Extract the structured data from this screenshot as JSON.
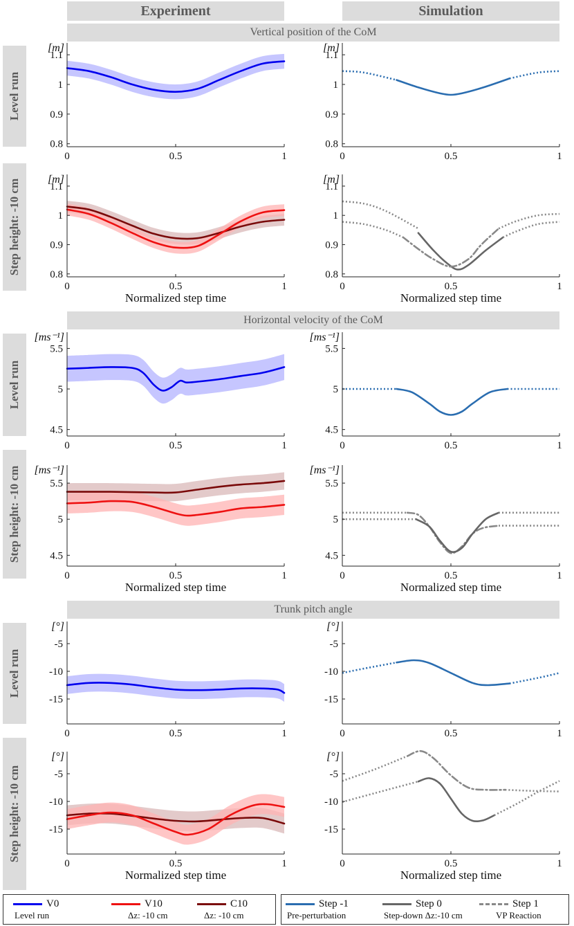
{
  "headers": {
    "experiment": "Experiment",
    "simulation": "Simulation"
  },
  "sections": [
    "Vertical position of the CoM",
    "Horizontal velocity of the CoM",
    "Trunk pitch angle"
  ],
  "row_labels": {
    "level": "Level  run",
    "step": "Step height: -10 cm"
  },
  "colors": {
    "V0": "#0000ee",
    "V10": "#ee1111",
    "C10": "#7a0a0a",
    "V0_band": "#b3b3ff",
    "V10_band": "#ffb3b3",
    "C10_band": "#d9b8b8",
    "sim_blue": "#2a6db0",
    "sim_gray": "#666666",
    "sim_lightgray": "#888888"
  },
  "legend": {
    "left": [
      {
        "name": "V0",
        "sub": "Level run"
      },
      {
        "name": "V10",
        "sub": "Δz: -10 cm"
      },
      {
        "name": "C10",
        "sub": "Δz: -10 cm"
      }
    ],
    "right": [
      {
        "name": "Step -1",
        "sub": "Pre-perturbation"
      },
      {
        "name": "Step 0",
        "sub": "Step-down Δz:-10 cm"
      },
      {
        "name": "Step 1",
        "sub": "VP Reaction"
      }
    ]
  },
  "chart_data": [
    {
      "id": "exp-com-level",
      "type": "line",
      "unit": "[m]",
      "xlabel": "",
      "xlim": [
        0,
        1
      ],
      "ylim": [
        0.79,
        1.14
      ],
      "yticks": [
        0.8,
        0.9,
        1,
        1.1
      ],
      "xticks": [
        0,
        0.5,
        1
      ],
      "series": [
        {
          "name": "V0",
          "color": "V0",
          "style": "solid",
          "x": [
            0,
            0.1,
            0.2,
            0.3,
            0.4,
            0.5,
            0.6,
            0.7,
            0.8,
            0.9,
            1.0
          ],
          "y": [
            1.055,
            1.045,
            1.025,
            1.0,
            0.982,
            0.975,
            0.985,
            1.015,
            1.045,
            1.07,
            1.078
          ],
          "band": 0.025
        }
      ]
    },
    {
      "id": "sim-com-level",
      "type": "line",
      "unit": "[m]",
      "xlabel": "",
      "xlim": [
        0,
        1
      ],
      "ylim": [
        0.79,
        1.14
      ],
      "yticks": [
        0.8,
        0.9,
        1,
        1.1
      ],
      "xticks": [
        0,
        0.5,
        1
      ],
      "series": [
        {
          "name": "Step -1",
          "color": "sim_blue",
          "style": "dotted",
          "x": [
            0,
            0.1,
            0.25
          ],
          "y": [
            1.045,
            1.04,
            1.015
          ]
        },
        {
          "name": "Step -1",
          "color": "sim_blue",
          "style": "solid",
          "x": [
            0.25,
            0.35,
            0.45,
            0.5,
            0.55,
            0.65,
            0.77
          ],
          "y": [
            1.015,
            0.99,
            0.97,
            0.965,
            0.97,
            0.99,
            1.02
          ]
        },
        {
          "name": "Step -1",
          "color": "sim_blue",
          "style": "dotted",
          "x": [
            0.77,
            0.9,
            1.0
          ],
          "y": [
            1.02,
            1.04,
            1.045
          ]
        }
      ]
    },
    {
      "id": "exp-com-step",
      "type": "line",
      "unit": "[m]",
      "xlabel": "Normalized step time",
      "xlim": [
        0,
        1
      ],
      "ylim": [
        0.79,
        1.14
      ],
      "yticks": [
        0.8,
        0.9,
        1,
        1.1
      ],
      "xticks": [
        0,
        0.5,
        1
      ],
      "series": [
        {
          "name": "C10",
          "color": "C10",
          "style": "solid",
          "x": [
            0,
            0.1,
            0.2,
            0.3,
            0.4,
            0.5,
            0.6,
            0.7,
            0.8,
            0.9,
            1.0
          ],
          "y": [
            1.03,
            1.02,
            0.995,
            0.965,
            0.937,
            0.922,
            0.922,
            0.94,
            0.962,
            0.978,
            0.985
          ],
          "band": 0.02
        },
        {
          "name": "V10",
          "color": "V10",
          "style": "solid",
          "x": [
            0,
            0.1,
            0.2,
            0.3,
            0.4,
            0.5,
            0.6,
            0.7,
            0.8,
            0.9,
            1.0
          ],
          "y": [
            1.02,
            1.005,
            0.975,
            0.94,
            0.908,
            0.89,
            0.895,
            0.935,
            0.98,
            1.01,
            1.018
          ],
          "band": 0.02
        }
      ]
    },
    {
      "id": "sim-com-step",
      "type": "line",
      "unit": "[m]",
      "xlabel": "Normalized step time",
      "xlim": [
        0,
        1
      ],
      "ylim": [
        0.79,
        1.14
      ],
      "yticks": [
        0.8,
        0.9,
        1,
        1.1
      ],
      "xticks": [
        0,
        0.5,
        1
      ],
      "series": [
        {
          "name": "Step -1",
          "color": "sim_lightgray",
          "style": "dotted",
          "x": [
            0,
            0.1,
            0.2,
            0.35
          ],
          "y": [
            1.048,
            1.04,
            1.015,
            0.955
          ]
        },
        {
          "name": "Step -1",
          "color": "sim_lightgray",
          "style": "dotted",
          "x": [
            0,
            0.1,
            0.2,
            0.28
          ],
          "y": [
            0.978,
            0.97,
            0.95,
            0.925
          ]
        },
        {
          "name": "Step 0",
          "color": "sim_gray",
          "style": "solid",
          "x": [
            0.35,
            0.42,
            0.48,
            0.53,
            0.58,
            0.66,
            0.74
          ],
          "y": [
            0.94,
            0.88,
            0.838,
            0.815,
            0.83,
            0.88,
            0.925
          ]
        },
        {
          "name": "Step 1",
          "color": "sim_lightgray",
          "style": "dashdot",
          "x": [
            0.28,
            0.35,
            0.42,
            0.5,
            0.58,
            0.64,
            0.72
          ],
          "y": [
            0.925,
            0.885,
            0.85,
            0.825,
            0.85,
            0.9,
            0.955
          ]
        },
        {
          "name": "Step -1",
          "color": "sim_lightgray",
          "style": "dotted",
          "x": [
            0.72,
            0.8,
            0.9,
            1.0
          ],
          "y": [
            0.955,
            0.98,
            1.0,
            1.005
          ]
        },
        {
          "name": "Step -1",
          "color": "sim_lightgray",
          "style": "dotted",
          "x": [
            0.74,
            0.8,
            0.9,
            1.0
          ],
          "y": [
            0.925,
            0.945,
            0.97,
            0.978
          ]
        }
      ]
    },
    {
      "id": "exp-vel-level",
      "type": "line",
      "unit": "[ms⁻¹]",
      "xlabel": "",
      "xlim": [
        0,
        1
      ],
      "ylim": [
        4.42,
        5.7
      ],
      "yticks": [
        4.5,
        5,
        5.5
      ],
      "xticks": [
        0,
        0.5,
        1
      ],
      "series": [
        {
          "name": "V0",
          "color": "V0",
          "style": "solid",
          "x": [
            0,
            0.1,
            0.2,
            0.3,
            0.35,
            0.4,
            0.44,
            0.48,
            0.52,
            0.55,
            0.6,
            0.7,
            0.8,
            0.9,
            1.0
          ],
          "y": [
            5.25,
            5.26,
            5.27,
            5.26,
            5.2,
            5.05,
            4.98,
            5.02,
            5.1,
            5.08,
            5.09,
            5.12,
            5.16,
            5.2,
            5.27
          ],
          "band": 0.16
        }
      ]
    },
    {
      "id": "sim-vel-level",
      "type": "line",
      "unit": "[ms⁻¹]",
      "xlabel": "",
      "xlim": [
        0,
        1
      ],
      "ylim": [
        4.42,
        5.7
      ],
      "yticks": [
        4.5,
        5,
        5.5
      ],
      "xticks": [
        0,
        0.5,
        1
      ],
      "series": [
        {
          "name": "Step -1",
          "color": "sim_blue",
          "style": "dotted",
          "x": [
            0,
            0.25
          ],
          "y": [
            5.0,
            5.0
          ]
        },
        {
          "name": "Step -1",
          "color": "sim_blue",
          "style": "solid",
          "x": [
            0.25,
            0.32,
            0.4,
            0.45,
            0.5,
            0.55,
            0.6,
            0.68,
            0.76
          ],
          "y": [
            5.0,
            4.96,
            4.82,
            4.72,
            4.68,
            4.72,
            4.82,
            4.96,
            5.0
          ]
        },
        {
          "name": "Step -1",
          "color": "sim_blue",
          "style": "dotted",
          "x": [
            0.76,
            1.0
          ],
          "y": [
            5.0,
            5.0
          ]
        }
      ]
    },
    {
      "id": "exp-vel-step",
      "type": "line",
      "unit": "[ms⁻¹]",
      "xlabel": "Normalized step time",
      "xlim": [
        0,
        1
      ],
      "ylim": [
        4.35,
        5.75
      ],
      "yticks": [
        4.5,
        5,
        5.5
      ],
      "xticks": [
        0,
        0.5,
        1
      ],
      "series": [
        {
          "name": "C10",
          "color": "C10",
          "style": "solid",
          "x": [
            0,
            0.2,
            0.4,
            0.5,
            0.6,
            0.7,
            0.8,
            0.9,
            1.0
          ],
          "y": [
            5.38,
            5.38,
            5.37,
            5.37,
            5.41,
            5.45,
            5.48,
            5.5,
            5.53
          ],
          "band": 0.12
        },
        {
          "name": "V10",
          "color": "V10",
          "style": "solid",
          "x": [
            0,
            0.1,
            0.2,
            0.3,
            0.4,
            0.5,
            0.55,
            0.6,
            0.7,
            0.8,
            0.9,
            1.0
          ],
          "y": [
            5.22,
            5.23,
            5.25,
            5.24,
            5.17,
            5.08,
            5.05,
            5.06,
            5.1,
            5.15,
            5.17,
            5.2
          ],
          "band": 0.14
        }
      ]
    },
    {
      "id": "sim-vel-step",
      "type": "line",
      "unit": "[ms⁻¹]",
      "xlabel": "Normalized step time",
      "xlim": [
        0,
        1
      ],
      "ylim": [
        4.35,
        5.75
      ],
      "yticks": [
        4.5,
        5,
        5.5
      ],
      "xticks": [
        0,
        0.5,
        1
      ],
      "series": [
        {
          "name": "Step -1",
          "color": "sim_lightgray",
          "style": "dotted",
          "x": [
            0,
            0.3
          ],
          "y": [
            5.09,
            5.09
          ]
        },
        {
          "name": "Step -1",
          "color": "sim_lightgray",
          "style": "dotted",
          "x": [
            0,
            0.34
          ],
          "y": [
            5.0,
            5.0
          ]
        },
        {
          "name": "Step 1",
          "color": "sim_lightgray",
          "style": "dashdot",
          "x": [
            0.3,
            0.35,
            0.4,
            0.45,
            0.5,
            0.55,
            0.6,
            0.65,
            0.72
          ],
          "y": [
            5.09,
            5.06,
            4.9,
            4.68,
            4.53,
            4.62,
            4.8,
            4.88,
            4.91
          ]
        },
        {
          "name": "Step 0",
          "color": "sim_gray",
          "style": "solid",
          "x": [
            0.34,
            0.4,
            0.45,
            0.5,
            0.55,
            0.6,
            0.66,
            0.72
          ],
          "y": [
            5.0,
            4.9,
            4.7,
            4.55,
            4.6,
            4.8,
            5.0,
            5.09
          ]
        },
        {
          "name": "Step -1",
          "color": "sim_lightgray",
          "style": "dotted",
          "x": [
            0.72,
            1.0
          ],
          "y": [
            5.09,
            5.09
          ]
        },
        {
          "name": "Step -1",
          "color": "sim_lightgray",
          "style": "dotted",
          "x": [
            0.72,
            1.0
          ],
          "y": [
            4.91,
            4.91
          ]
        }
      ]
    },
    {
      "id": "exp-trunk-level",
      "type": "line",
      "unit": "[°]",
      "xlabel": "",
      "xlim": [
        0,
        1
      ],
      "ylim": [
        -19.5,
        -1
      ],
      "yticks": [
        -15,
        -10,
        -5
      ],
      "xticks": [
        0,
        0.5,
        1
      ],
      "series": [
        {
          "name": "V0",
          "color": "V0",
          "style": "solid",
          "x": [
            0,
            0.1,
            0.2,
            0.3,
            0.4,
            0.5,
            0.6,
            0.7,
            0.8,
            0.9,
            0.97,
            1.0
          ],
          "y": [
            -12.5,
            -12.1,
            -12.1,
            -12.4,
            -12.9,
            -13.3,
            -13.4,
            -13.3,
            -13.1,
            -13.1,
            -13.3,
            -13.9
          ],
          "band": 1.6
        }
      ]
    },
    {
      "id": "sim-trunk-level",
      "type": "line",
      "unit": "[°]",
      "xlabel": "",
      "xlim": [
        0,
        1
      ],
      "ylim": [
        -19.5,
        -1
      ],
      "yticks": [
        -15,
        -10,
        -5
      ],
      "xticks": [
        0,
        0.5,
        1
      ],
      "series": [
        {
          "name": "Step -1",
          "color": "sim_blue",
          "style": "dotted",
          "x": [
            0,
            0.1,
            0.25
          ],
          "y": [
            -10.3,
            -9.5,
            -8.4
          ]
        },
        {
          "name": "Step -1",
          "color": "sim_blue",
          "style": "solid",
          "x": [
            0.25,
            0.33,
            0.4,
            0.5,
            0.6,
            0.67,
            0.77
          ],
          "y": [
            -8.4,
            -8.0,
            -8.5,
            -10.3,
            -12.1,
            -12.5,
            -12.2
          ]
        },
        {
          "name": "Step -1",
          "color": "sim_blue",
          "style": "dotted",
          "x": [
            0.77,
            0.9,
            1.0
          ],
          "y": [
            -12.2,
            -11.2,
            -10.3
          ]
        }
      ]
    },
    {
      "id": "exp-trunk-step",
      "type": "line",
      "unit": "[°]",
      "xlabel": "Normalized step time",
      "xlim": [
        0,
        1
      ],
      "ylim": [
        -19.5,
        -1
      ],
      "yticks": [
        -15,
        -10,
        -5
      ],
      "xticks": [
        0,
        0.5,
        1
      ],
      "series": [
        {
          "name": "C10",
          "color": "C10",
          "style": "solid",
          "x": [
            0,
            0.1,
            0.2,
            0.3,
            0.4,
            0.5,
            0.6,
            0.7,
            0.8,
            0.9,
            1.0
          ],
          "y": [
            -12.5,
            -12.2,
            -12.2,
            -12.6,
            -13.1,
            -13.5,
            -13.6,
            -13.3,
            -13.0,
            -13.0,
            -14.0
          ],
          "band": 1.8
        },
        {
          "name": "V10",
          "color": "V10",
          "style": "solid",
          "x": [
            0,
            0.1,
            0.2,
            0.3,
            0.4,
            0.5,
            0.56,
            0.65,
            0.75,
            0.85,
            0.92,
            1.0
          ],
          "y": [
            -13.2,
            -12.5,
            -12.0,
            -12.5,
            -14.0,
            -15.5,
            -16.0,
            -15.0,
            -12.5,
            -10.8,
            -10.5,
            -11.0
          ],
          "band": 1.8
        }
      ]
    },
    {
      "id": "sim-trunk-step",
      "type": "line",
      "unit": "[°]",
      "xlabel": "Normalized step time",
      "xlim": [
        0,
        1
      ],
      "ylim": [
        -19.5,
        -1
      ],
      "yticks": [
        -15,
        -10,
        -5
      ],
      "xticks": [
        0,
        0.5,
        1
      ],
      "series": [
        {
          "name": "Step -1",
          "color": "sim_lightgray",
          "style": "dotted",
          "x": [
            0,
            0.15,
            0.3
          ],
          "y": [
            -6.3,
            -4.2,
            -1.8
          ]
        },
        {
          "name": "Step -1",
          "color": "sim_lightgray",
          "style": "dotted",
          "x": [
            0,
            0.15,
            0.35
          ],
          "y": [
            -10.1,
            -8.5,
            -6.4
          ]
        },
        {
          "name": "Step 1",
          "color": "sim_lightgray",
          "style": "dashdot",
          "x": [
            0.3,
            0.36,
            0.42,
            0.5,
            0.58,
            0.66,
            0.75
          ],
          "y": [
            -1.8,
            -0.9,
            -2.2,
            -5.3,
            -7.5,
            -7.9,
            -7.9
          ]
        },
        {
          "name": "Step 0",
          "color": "sim_gray",
          "style": "solid",
          "x": [
            0.35,
            0.4,
            0.45,
            0.5,
            0.55,
            0.6,
            0.65,
            0.7
          ],
          "y": [
            -6.4,
            -5.8,
            -6.8,
            -9.5,
            -12.2,
            -13.5,
            -13.4,
            -12.5
          ]
        },
        {
          "name": "Step -1",
          "color": "sim_lightgray",
          "style": "dotted",
          "x": [
            0.75,
            0.88,
            1.0
          ],
          "y": [
            -7.9,
            -8.1,
            -8.2
          ]
        },
        {
          "name": "Step -1",
          "color": "sim_lightgray",
          "style": "dotted",
          "x": [
            0.7,
            0.8,
            0.9,
            1.0
          ],
          "y": [
            -12.5,
            -10.5,
            -8.3,
            -6.3
          ]
        }
      ]
    }
  ]
}
